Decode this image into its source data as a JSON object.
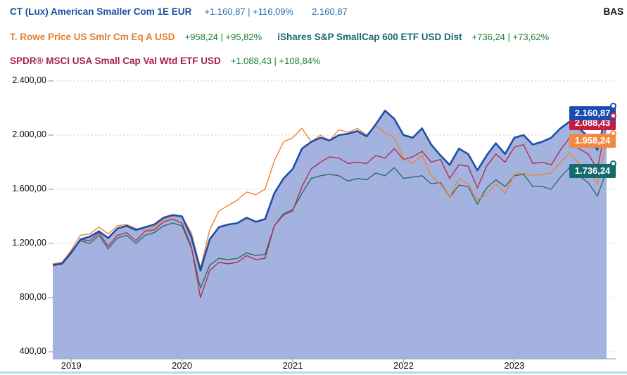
{
  "legend": {
    "row1": {
      "name": "CT (Lux) American Smaller Com 1E EUR",
      "perf": "+1.160,87 | +116,09%",
      "value": "2.160,87"
    },
    "row2": [
      {
        "name": "T. Rowe Price US Smlr Cm Eq A USD",
        "perf": "+958,24 | +95,82%"
      },
      {
        "name": "iShares S&P SmallCap 600 ETF USD Dist",
        "perf": "+736,24 | +73,62%"
      }
    ],
    "row3": {
      "name": "SPDR® MSCI USA Small Cap Val Wtd ETF USD",
      "perf": "+1.088,43 | +108,84%"
    }
  },
  "watermark": "BAS",
  "colors": {
    "ct_name": "#1a50a0",
    "ct_perf": "#2a6fb0",
    "trp_name": "#e0802e",
    "ishares_name": "#1a6a6e",
    "spdr_name": "#a52248",
    "perf_green": "#1e7d34",
    "grid": "#c9c9c9",
    "area_fill": "#99aadc",
    "bottom_bar": "#a8dcf2",
    "axis": "#999999"
  },
  "badges": [
    {
      "label": "2.160,87",
      "value": 2160.87,
      "color": "#1c4bb0",
      "series": "ct"
    },
    {
      "label": "2.088,43",
      "value": 2088.43,
      "color": "#c22040",
      "series": "spdr"
    },
    {
      "label": "1.958,24",
      "value": 1958.24,
      "color": "#f08a42",
      "series": "trp"
    },
    {
      "label": "1.736,24",
      "value": 1736.24,
      "color": "#146a6d",
      "series": "ishares"
    }
  ],
  "chart_data": {
    "type": "area",
    "x_unit": "month",
    "x_start": "2018-11",
    "x_end": "2023-11",
    "x_ticks": [
      "2019",
      "2020",
      "2021",
      "2022",
      "2023"
    ],
    "x_tick_indices": [
      2,
      14,
      26,
      38,
      50
    ],
    "y_ticks": [
      "2.400,00",
      "2.000,00",
      "1.600,00",
      "1.200,00",
      "800,00",
      "400,00"
    ],
    "y_tick_values": [
      2400,
      2000,
      1600,
      1200,
      800,
      400
    ],
    "ylim": [
      400,
      2400
    ],
    "grid": "horizontal-dotted",
    "legend_position": "top",
    "series": [
      {
        "id": "ct",
        "name": "CT (Lux) American Smaller Com 1E EUR",
        "color": "#1e4fa6",
        "style": "area",
        "final_label": "2.160,87",
        "values": [
          1040,
          1050,
          1130,
          1230,
          1250,
          1290,
          1240,
          1310,
          1330,
          1300,
          1320,
          1340,
          1390,
          1410,
          1400,
          1250,
          1000,
          1230,
          1320,
          1340,
          1350,
          1390,
          1360,
          1380,
          1570,
          1680,
          1750,
          1900,
          1950,
          1980,
          1960,
          2000,
          2010,
          2030,
          1990,
          2080,
          2180,
          2120,
          2000,
          1980,
          2050,
          1930,
          1850,
          1780,
          1900,
          1860,
          1740,
          1850,
          1940,
          1860,
          1980,
          2000,
          1930,
          1950,
          1980,
          2050,
          2100,
          2050,
          1990,
          1890,
          2160.87
        ]
      },
      {
        "id": "trp",
        "name": "T. Rowe Price US Smlr Cm Eq A USD",
        "color": "#ec8438",
        "style": "line",
        "final_label": "1.958,24",
        "values": [
          1050,
          1060,
          1150,
          1260,
          1270,
          1320,
          1270,
          1330,
          1340,
          1310,
          1300,
          1320,
          1380,
          1400,
          1400,
          1280,
          1020,
          1300,
          1440,
          1480,
          1520,
          1580,
          1560,
          1600,
          1810,
          1950,
          1980,
          2050,
          1950,
          2000,
          1960,
          2040,
          2020,
          2050,
          2000,
          2070,
          2020,
          1980,
          1830,
          1790,
          1850,
          1700,
          1640,
          1540,
          1680,
          1640,
          1520,
          1560,
          1640,
          1570,
          1710,
          1720,
          1700,
          1710,
          1720,
          1800,
          1870,
          1790,
          1740,
          1640,
          1958.24
        ]
      },
      {
        "id": "ishares",
        "name": "iShares S&P SmallCap 600 ETF USD Dist",
        "color": "#2b6e68",
        "style": "line",
        "final_label": "1.736,24",
        "values": [
          1050,
          1055,
          1130,
          1220,
          1200,
          1260,
          1160,
          1240,
          1260,
          1200,
          1260,
          1280,
          1330,
          1350,
          1330,
          1170,
          870,
          1040,
          1090,
          1080,
          1090,
          1130,
          1110,
          1120,
          1330,
          1420,
          1450,
          1570,
          1680,
          1700,
          1710,
          1700,
          1660,
          1680,
          1670,
          1720,
          1700,
          1760,
          1680,
          1690,
          1700,
          1640,
          1650,
          1540,
          1630,
          1620,
          1490,
          1610,
          1670,
          1620,
          1700,
          1710,
          1620,
          1620,
          1600,
          1690,
          1760,
          1700,
          1650,
          1550,
          1736.24
        ]
      },
      {
        "id": "spdr",
        "name": "SPDR® MSCI USA Small Cap Val Wtd ETF USD",
        "color": "#b13050",
        "style": "line",
        "final_label": "2.088,43",
        "values": [
          1050,
          1060,
          1140,
          1230,
          1220,
          1280,
          1180,
          1260,
          1280,
          1220,
          1290,
          1300,
          1360,
          1380,
          1350,
          1180,
          800,
          1000,
          1060,
          1050,
          1060,
          1110,
          1080,
          1090,
          1330,
          1410,
          1440,
          1620,
          1750,
          1800,
          1840,
          1830,
          1790,
          1800,
          1790,
          1850,
          1830,
          1900,
          1820,
          1840,
          1880,
          1800,
          1820,
          1680,
          1780,
          1770,
          1610,
          1770,
          1860,
          1800,
          1910,
          1930,
          1790,
          1800,
          1780,
          1890,
          1980,
          1900,
          1860,
          1750,
          2088.43
        ]
      }
    ]
  }
}
